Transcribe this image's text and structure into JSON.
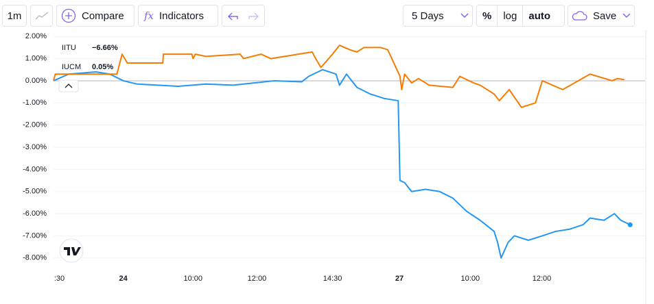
{
  "toolbar": {
    "interval": "1m",
    "compare": "Compare",
    "indicators": "Indicators",
    "range": "5 Days",
    "percent": "%",
    "log": "log",
    "auto": "auto",
    "save": "Save"
  },
  "chart_data": {
    "type": "line",
    "xlim": [
      0,
      100
    ],
    "xticks": [
      {
        "value": 1,
        "label": ":30"
      },
      {
        "value": 12,
        "label": "24",
        "bold": true
      },
      {
        "value": 24,
        "label": "10:00"
      },
      {
        "value": 35,
        "label": "12:00"
      },
      {
        "value": 48,
        "label": "14:30"
      },
      {
        "value": 59.5,
        "label": "27",
        "bold": true
      },
      {
        "value": 71.7,
        "label": "10:00"
      },
      {
        "value": 84,
        "label": "12:00"
      }
    ],
    "ylim": [
      -8.1,
      2.1
    ],
    "yticks": [
      {
        "value": 2,
        "label": "2.00%"
      },
      {
        "value": 1,
        "label": "1.00%"
      },
      {
        "value": 0,
        "label": "0.00%"
      },
      {
        "value": -1,
        "label": "-1.00%"
      },
      {
        "value": -2,
        "label": "-2.00%"
      },
      {
        "value": -3,
        "label": "-3.00%"
      },
      {
        "value": -4,
        "label": "-4.00%"
      },
      {
        "value": -5,
        "label": "-5.00%"
      },
      {
        "value": -6,
        "label": "-6.00%"
      },
      {
        "value": -7,
        "label": "-7.00%"
      },
      {
        "value": -8,
        "label": "-8.00%"
      }
    ],
    "grid": true,
    "series": [
      {
        "name": "IITU",
        "color": "#2196f3",
        "change": {
          "value": -6.66,
          "label": "−6.66%"
        },
        "x": [
          0,
          2.6,
          7.3,
          9.7,
          12,
          14.4,
          17.9,
          21.5,
          26.2,
          30.9,
          34.5,
          38,
          42.7,
          43.9,
          46.3,
          48.6,
          49.2,
          50.4,
          52.2,
          54.5,
          56.9,
          59.3,
          59.6,
          60.4,
          61.6,
          64,
          66.4,
          68.7,
          71.1,
          73.4,
          75.8,
          76.4,
          77,
          78.2,
          79.3,
          81.7,
          84.1,
          86.4,
          88.8,
          91.1,
          92.3,
          94.7,
          96.5,
          97.6,
          99.2
        ],
        "values": [
          0,
          0.3,
          0.4,
          0.3,
          0,
          -0.15,
          -0.2,
          -0.25,
          -0.15,
          -0.2,
          -0.1,
          0,
          -0.05,
          0.2,
          0.5,
          0.3,
          -0.2,
          0.3,
          -0.3,
          -0.6,
          -0.8,
          -0.9,
          -4.5,
          -4.6,
          -5,
          -4.9,
          -5,
          -5.3,
          -5.9,
          -6.3,
          -6.8,
          -7.3,
          -8,
          -7.3,
          -7,
          -7.2,
          -7,
          -6.8,
          -6.7,
          -6.5,
          -6.2,
          -6.3,
          -6,
          -6.3,
          -6.5
        ]
      },
      {
        "name": "IUCM",
        "color": "#f57c00",
        "change": {
          "value": 0.05,
          "label": "0.05%"
        },
        "x": [
          0,
          0.3,
          10.9,
          11.8,
          12.7,
          18.8,
          18.9,
          23.8,
          24,
          24.4,
          26.2,
          32.1,
          32.7,
          35.7,
          37.4,
          44.5,
          45.1,
          46,
          48,
          49.2,
          51,
          52.2,
          53.4,
          56.3,
          57.5,
          59.6,
          59.9,
          60.4,
          61.6,
          62.8,
          64.6,
          68.7,
          69.9,
          72.3,
          73.4,
          75.8,
          76.7,
          78.4,
          80.5,
          82.9,
          84.1,
          87.6,
          92.3,
          96.1,
          97,
          98.2
        ],
        "values": [
          0,
          0.3,
          0.3,
          1.2,
          0.8,
          0.8,
          1.2,
          1.2,
          1,
          1.2,
          1.1,
          1.2,
          1,
          1.2,
          1,
          1.3,
          1,
          0.6,
          1.2,
          1.6,
          1.4,
          1.3,
          1.5,
          1.5,
          1.4,
          0.2,
          -0.4,
          0.3,
          -0.1,
          0.1,
          -0.2,
          -0.3,
          0.2,
          -0.1,
          -0.2,
          -0.6,
          -0.9,
          -0.4,
          -1.2,
          -1,
          0,
          -0.4,
          0.3,
          0,
          0.1,
          0.05
        ]
      }
    ]
  }
}
